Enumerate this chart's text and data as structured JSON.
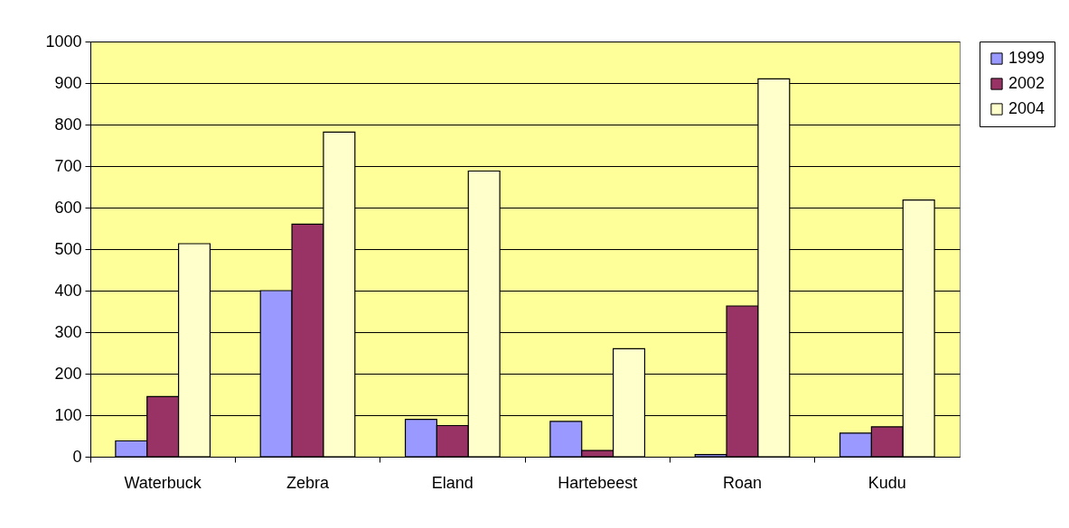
{
  "chart_data": {
    "type": "bar",
    "categories": [
      "Waterbuck",
      "Zebra",
      "Eland",
      "Hartebeest",
      "Roan",
      "Kudu"
    ],
    "series": [
      {
        "name": "1999",
        "color": "#9999ff",
        "values": [
          38,
          400,
          90,
          85,
          5,
          57
        ]
      },
      {
        "name": "2002",
        "color": "#993366",
        "values": [
          145,
          560,
          75,
          15,
          363,
          72
        ]
      },
      {
        "name": "2004",
        "color": "#ffffcc",
        "values": [
          513,
          782,
          688,
          260,
          910,
          618
        ]
      }
    ],
    "ylim": [
      0,
      1000
    ],
    "yticks": [
      0,
      100,
      200,
      300,
      400,
      500,
      600,
      700,
      800,
      900,
      1000
    ],
    "grid": "y",
    "legend": "right"
  }
}
